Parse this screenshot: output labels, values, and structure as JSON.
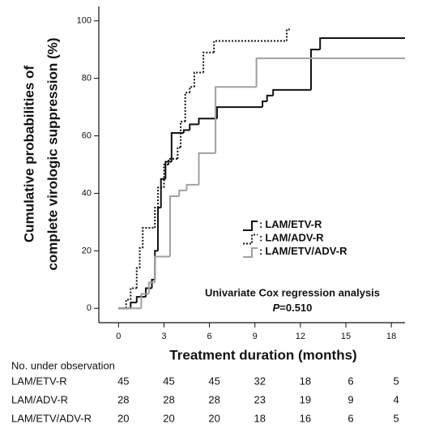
{
  "chart_data": {
    "type": "step",
    "y_label_lines": [
      "Cumulative probabilities of",
      "complete virologic suppression (%)"
    ],
    "x_label": "Treatment duration (months)",
    "xlim": [
      -1.3,
      18.9
    ],
    "ylim": [
      -5,
      105
    ],
    "xticks": [
      0,
      3,
      6,
      9,
      12,
      15,
      18
    ],
    "yticks": [
      0,
      20,
      40,
      60,
      80,
      100
    ],
    "legend_prefix": ":",
    "series": [
      {
        "name": "LAM/ETV-R",
        "color": "#111111",
        "dash": "solid",
        "x": [
          0,
          0.8,
          1.2,
          1.8,
          2.2,
          2.4,
          2.6,
          2.8,
          3.1,
          3.5,
          4.3,
          4.7,
          5.3,
          6.5,
          9.5,
          9.8,
          10.2,
          12.7,
          13.3,
          18.9
        ],
        "values": [
          0,
          2,
          4,
          7,
          10,
          20,
          35,
          45,
          51,
          61,
          62,
          64,
          66,
          70,
          72,
          74,
          76,
          90,
          94,
          94
        ]
      },
      {
        "name": "LAM/ADV-R",
        "color": "#111111",
        "dash": "dotted",
        "x": [
          0,
          0.5,
          0.8,
          1.2,
          1.4,
          1.6,
          2.4,
          2.6,
          3.0,
          3.3,
          3.9,
          4.1,
          4.4,
          4.7,
          5.0,
          5.6,
          6.3,
          11.1,
          11.3
        ],
        "values": [
          0,
          3,
          7,
          14,
          21,
          28,
          35,
          42,
          50,
          52,
          56,
          65,
          75,
          77,
          82,
          89,
          93,
          97,
          97
        ]
      },
      {
        "name": "LAM/ETV/ADV-R",
        "color": "#a0a0a0",
        "dash": "solid",
        "x": [
          0,
          1.5,
          2.0,
          2.4,
          3.4,
          4.0,
          4.5,
          5.3,
          6.4,
          9.1,
          18.9
        ],
        "values": [
          0,
          5,
          9,
          18,
          39,
          41,
          43,
          54,
          77,
          87,
          87
        ]
      }
    ],
    "annotation": "Univariate Cox regression analysis",
    "p_label": "P",
    "p_value_text": "=0.510",
    "risk_table": {
      "title": "No. under observation",
      "rows": [
        {
          "name": "LAM/ETV-R",
          "counts": [
            45,
            45,
            45,
            32,
            18,
            6,
            5
          ]
        },
        {
          "name": "LAM/ADV-R",
          "counts": [
            28,
            28,
            28,
            23,
            19,
            9,
            4
          ]
        },
        {
          "name": "LAM/ETV/ADV-R",
          "counts": [
            20,
            20,
            20,
            18,
            16,
            6,
            5
          ]
        }
      ]
    }
  }
}
